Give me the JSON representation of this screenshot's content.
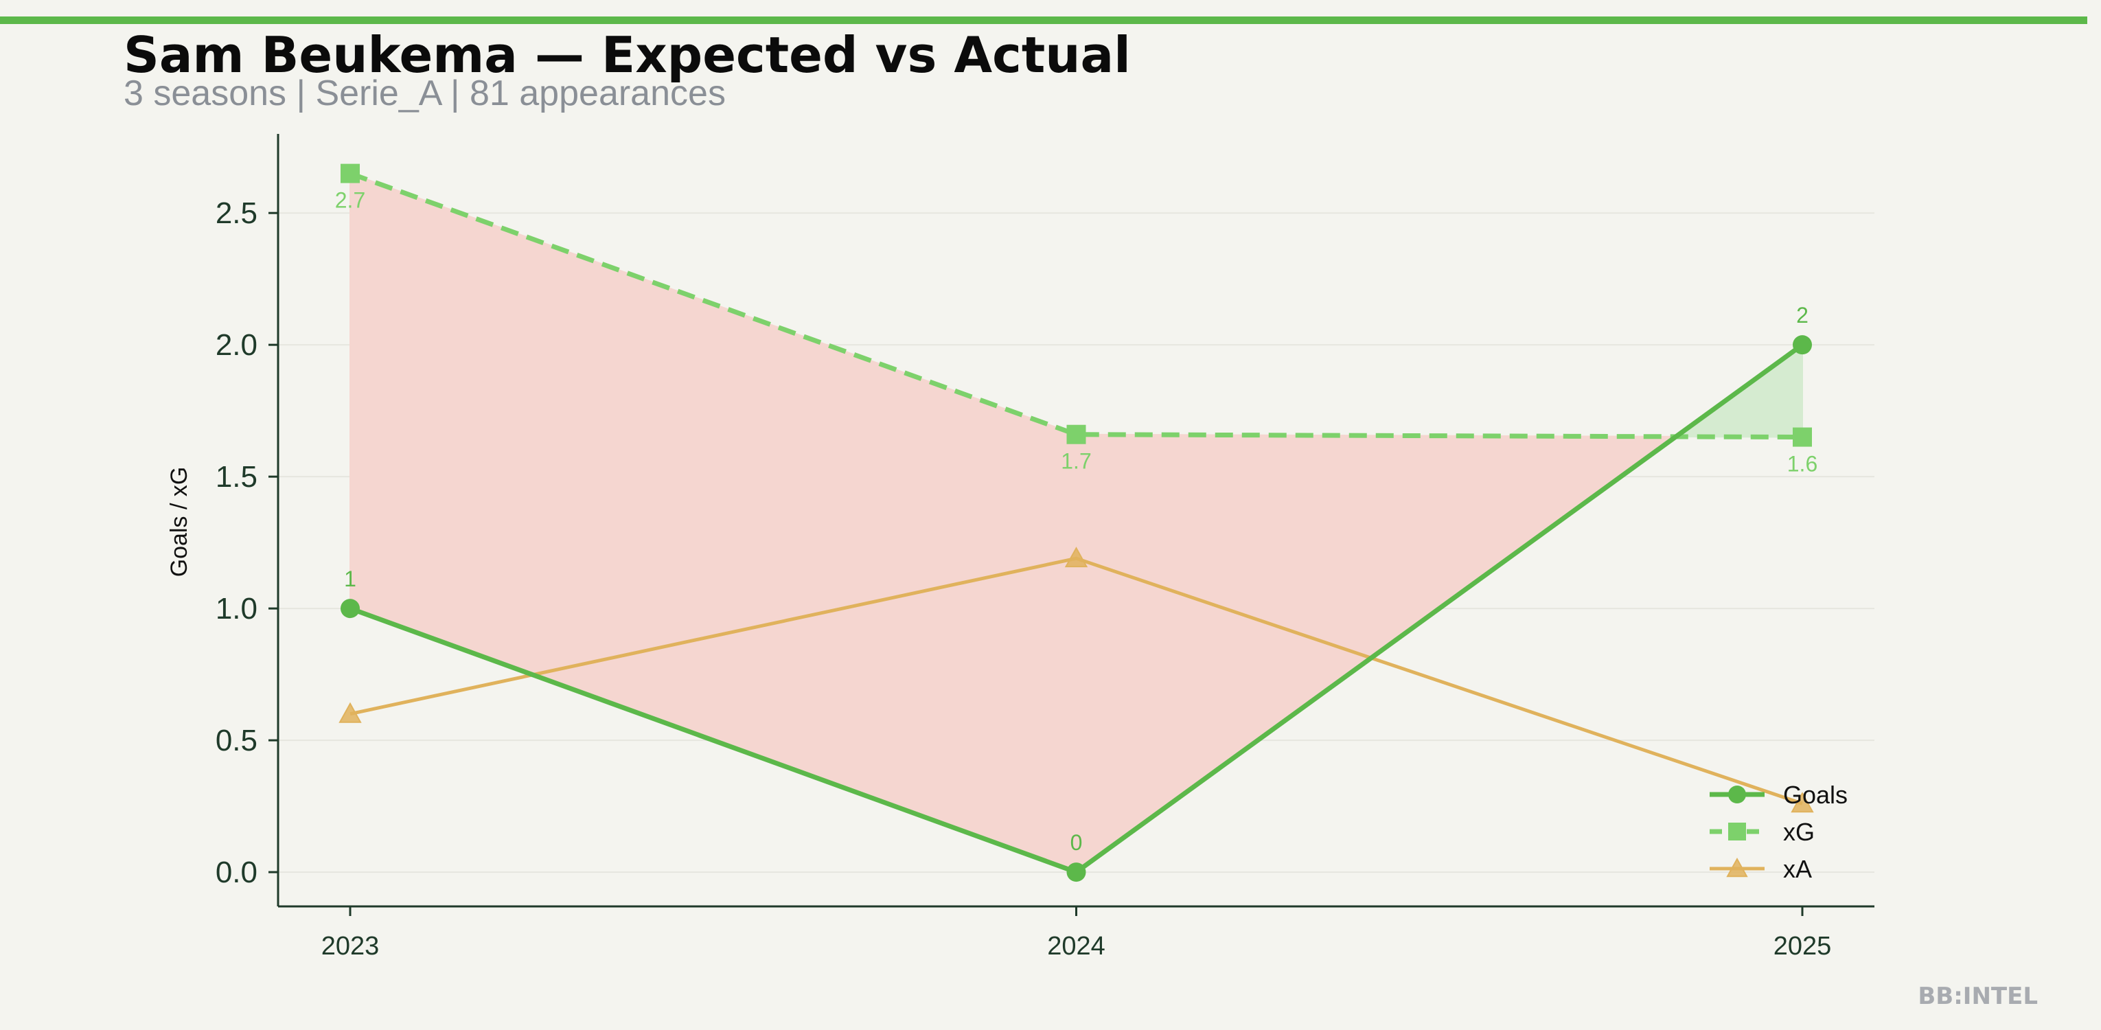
{
  "colors": {
    "background": "#f4f4ef",
    "accent_bar": "#5cb84a",
    "goals": "#5cb84a",
    "xg": "#7dd16b",
    "xa": "#e0b25c",
    "underperform_fill": "#f5d6d0",
    "overperform_fill": "#d5ebd0",
    "axis": "#1f3a2a"
  },
  "header": {
    "title": "Sam Beukema — Expected vs Actual",
    "subtitle": "3 seasons | Serie_A | 81 appearances"
  },
  "watermark": "BB:INTEL",
  "chart_data": {
    "type": "line",
    "title": "Sam Beukema — Expected vs Actual",
    "subtitle": "3 seasons | Serie_A | 81 appearances",
    "xlabel": "",
    "ylabel": "Goals / xG",
    "x": [
      "2023",
      "2024",
      "2025"
    ],
    "ylim": [
      -0.13,
      2.8
    ],
    "yticks": [
      0.0,
      0.5,
      1.0,
      1.5,
      2.0,
      2.5
    ],
    "ytick_labels": [
      "0.0",
      "0.5",
      "1.0",
      "1.5",
      "2.0",
      "2.5"
    ],
    "grid": "horizontal, faint",
    "legend_position": "bottom-right",
    "series": [
      {
        "name": "Goals",
        "values": [
          1,
          0,
          2
        ],
        "labels": [
          "1",
          "0",
          "2"
        ],
        "marker": "circle",
        "line": "solid",
        "color_key": "goals"
      },
      {
        "name": "xG",
        "values": [
          2.65,
          1.66,
          1.65
        ],
        "labels": [
          "2.7",
          "1.7",
          "1.6"
        ],
        "marker": "square",
        "line": "dashed",
        "color_key": "xg"
      },
      {
        "name": "xA",
        "values": [
          0.6,
          1.19,
          0.26
        ],
        "marker": "triangle",
        "line": "solid",
        "color_key": "xa"
      }
    ],
    "shaded_between": [
      "Goals",
      "xG"
    ]
  }
}
